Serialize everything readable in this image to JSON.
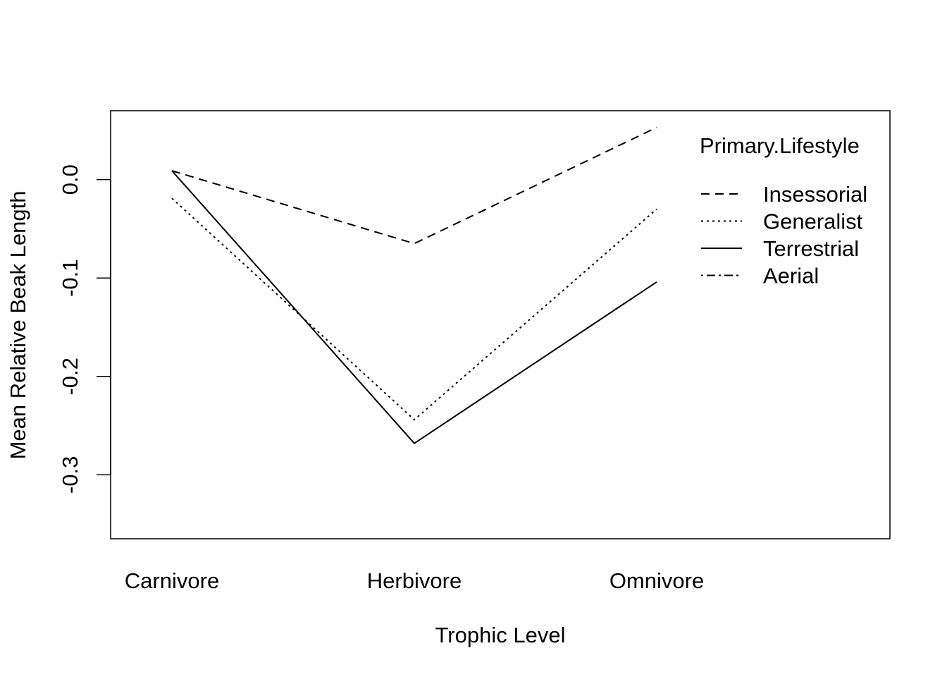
{
  "chart_data": {
    "type": "line",
    "title": "",
    "xlabel": "Trophic Level",
    "ylabel": "Mean Relative Beak Length",
    "categories": [
      "Carnivore",
      "Herbivore",
      "Omnivore"
    ],
    "ylim": [
      -0.365,
      0.07
    ],
    "yticks": [
      0.0,
      -0.1,
      -0.2,
      -0.3
    ],
    "ytick_labels": [
      "0.0",
      "-0.1",
      "-0.2",
      "-0.3"
    ],
    "grid": false,
    "legend": {
      "title": "Primary.Lifestyle",
      "position": "top-right",
      "entries": [
        "Insessorial",
        "Generalist",
        "Terrestrial",
        "Aerial"
      ]
    },
    "series": [
      {
        "name": "Insessorial",
        "dash": "dashed",
        "values": [
          0.009,
          -0.065,
          0.053
        ]
      },
      {
        "name": "Generalist",
        "dash": "dotted",
        "values": [
          -0.019,
          -0.244,
          -0.03
        ]
      },
      {
        "name": "Terrestrial",
        "dash": "solid",
        "values": [
          0.009,
          -0.268,
          -0.104
        ]
      },
      {
        "name": "Aerial",
        "dash": "dotdash",
        "values": [
          null,
          null,
          null
        ]
      }
    ]
  }
}
